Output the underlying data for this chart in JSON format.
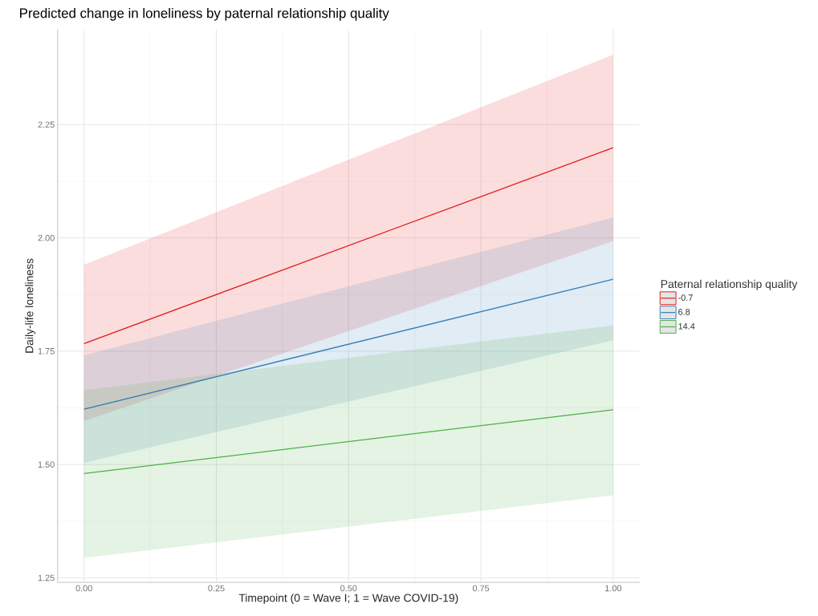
{
  "chart_data": {
    "type": "line",
    "title": "Predicted change in loneliness by paternal relationship quality",
    "xlabel": "Timepoint (0 = Wave I; 1 = Wave COVID-19)",
    "ylabel": "Daily-life loneliness",
    "legend_title": "Paternal relationship quality",
    "x": [
      0,
      1
    ],
    "series": [
      {
        "name": "-0.7",
        "color": "#e41a1c",
        "values": [
          1.767,
          2.199
        ],
        "lower": [
          1.596,
          1.993
        ],
        "upper": [
          1.941,
          2.404
        ]
      },
      {
        "name": "6.8",
        "color": "#377eb8",
        "values": [
          1.622,
          1.909
        ],
        "lower": [
          1.504,
          1.774
        ],
        "upper": [
          1.741,
          2.045
        ]
      },
      {
        "name": "14.4",
        "color": "#4daf4a",
        "values": [
          1.48,
          1.621
        ],
        "lower": [
          1.294,
          1.432
        ],
        "upper": [
          1.664,
          1.807
        ]
      }
    ],
    "xlim": [
      -0.05,
      1.05
    ],
    "ylim": [
      1.24,
      2.46
    ],
    "xticks": [
      {
        "value": 0,
        "label": "0.00"
      },
      {
        "value": 0.25,
        "label": "0.25"
      },
      {
        "value": 0.5,
        "label": "0.50"
      },
      {
        "value": 0.75,
        "label": "0.75"
      },
      {
        "value": 1,
        "label": "1.00"
      }
    ],
    "yticks": [
      {
        "value": 1.25,
        "label": "1.25"
      },
      {
        "value": 1.5,
        "label": "1.50"
      },
      {
        "value": 1.75,
        "label": "1.75"
      },
      {
        "value": 2,
        "label": "2.00"
      },
      {
        "value": 2.25,
        "label": "2.25"
      }
    ],
    "grid": true,
    "legend": "right"
  }
}
